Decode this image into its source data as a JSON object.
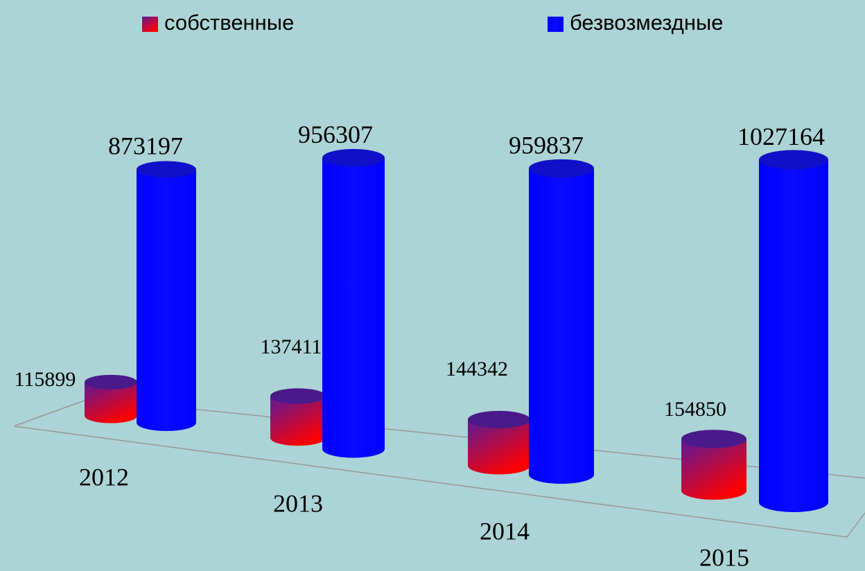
{
  "chart_data": {
    "type": "cylinder",
    "categories": [
      "2012",
      "2013",
      "2014",
      "2015"
    ],
    "series": [
      {
        "name": "собственные",
        "color": "#ff0000",
        "values": [
          115899,
          137411,
          144342,
          154850
        ]
      },
      {
        "name": "безвозмездные",
        "color": "#0000ff",
        "values": [
          873197,
          956307,
          959837,
          1027164
        ]
      }
    ]
  }
}
